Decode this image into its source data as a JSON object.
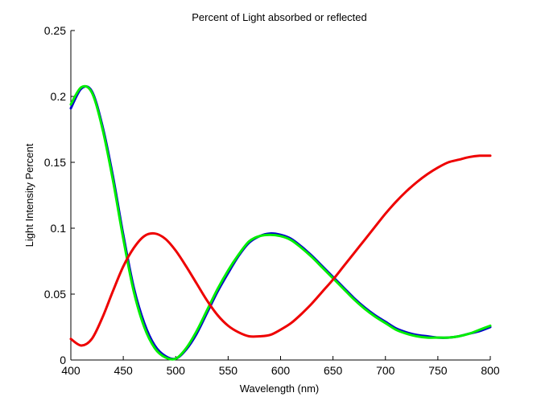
{
  "chart_data": {
    "type": "line",
    "title": "Percent of Light absorbed or reflected",
    "xlabel": "Wavelength (nm)",
    "ylabel": "Light Intensity Percent",
    "xlim": [
      400,
      800
    ],
    "ylim": [
      0,
      0.25
    ],
    "xticks": [
      400,
      450,
      500,
      550,
      600,
      650,
      700,
      750,
      800
    ],
    "yticks": [
      0,
      0.05,
      0.1,
      0.15,
      0.2,
      0.25
    ],
    "xtick_labels": [
      "400",
      "450",
      "500",
      "550",
      "600",
      "650",
      "700",
      "750",
      "800"
    ],
    "ytick_labels": [
      "0",
      "0.05",
      "0.1",
      "0.15",
      "0.2",
      "0.25"
    ],
    "grid": false,
    "legend": "none",
    "series": [
      {
        "color": "#0000cc",
        "x": [
          400,
          410,
          420,
          430,
          440,
          450,
          460,
          470,
          480,
          490,
          500,
          510,
          520,
          530,
          540,
          550,
          560,
          570,
          580,
          590,
          600,
          610,
          620,
          630,
          640,
          650,
          660,
          670,
          680,
          690,
          700,
          710,
          720,
          730,
          740,
          750,
          760,
          770,
          780,
          790,
          800
        ],
        "y": [
          0.191,
          0.206,
          0.204,
          0.178,
          0.14,
          0.095,
          0.055,
          0.028,
          0.011,
          0.003,
          0.001,
          0.008,
          0.02,
          0.036,
          0.052,
          0.066,
          0.079,
          0.089,
          0.094,
          0.096,
          0.095,
          0.092,
          0.086,
          0.079,
          0.071,
          0.063,
          0.055,
          0.047,
          0.04,
          0.034,
          0.029,
          0.024,
          0.021,
          0.019,
          0.018,
          0.017,
          0.017,
          0.018,
          0.02,
          0.022,
          0.025
        ]
      },
      {
        "color": "#00ee00",
        "x": [
          400,
          410,
          420,
          430,
          440,
          450,
          460,
          470,
          480,
          490,
          500,
          510,
          520,
          530,
          540,
          550,
          560,
          570,
          580,
          590,
          600,
          610,
          620,
          630,
          640,
          650,
          660,
          670,
          680,
          690,
          700,
          710,
          720,
          730,
          740,
          750,
          760,
          770,
          780,
          790,
          800
        ],
        "y": [
          0.194,
          0.207,
          0.203,
          0.176,
          0.137,
          0.092,
          0.052,
          0.025,
          0.009,
          0.002,
          0.001,
          0.009,
          0.022,
          0.038,
          0.054,
          0.068,
          0.08,
          0.09,
          0.094,
          0.095,
          0.094,
          0.091,
          0.085,
          0.078,
          0.07,
          0.062,
          0.054,
          0.046,
          0.039,
          0.033,
          0.028,
          0.023,
          0.02,
          0.018,
          0.017,
          0.017,
          0.017,
          0.018,
          0.02,
          0.023,
          0.026
        ]
      },
      {
        "color": "#ee0000",
        "x": [
          400,
          410,
          420,
          430,
          440,
          450,
          460,
          470,
          480,
          490,
          500,
          510,
          520,
          530,
          540,
          550,
          560,
          570,
          580,
          590,
          600,
          610,
          620,
          630,
          640,
          650,
          660,
          670,
          680,
          690,
          700,
          710,
          720,
          730,
          740,
          750,
          760,
          770,
          780,
          790,
          800
        ],
        "y": [
          0.016,
          0.011,
          0.016,
          0.032,
          0.052,
          0.071,
          0.085,
          0.094,
          0.096,
          0.092,
          0.083,
          0.071,
          0.058,
          0.045,
          0.034,
          0.026,
          0.021,
          0.018,
          0.018,
          0.019,
          0.023,
          0.028,
          0.035,
          0.043,
          0.052,
          0.061,
          0.071,
          0.081,
          0.091,
          0.101,
          0.111,
          0.12,
          0.128,
          0.135,
          0.141,
          0.146,
          0.15,
          0.152,
          0.154,
          0.155,
          0.155
        ]
      }
    ]
  }
}
